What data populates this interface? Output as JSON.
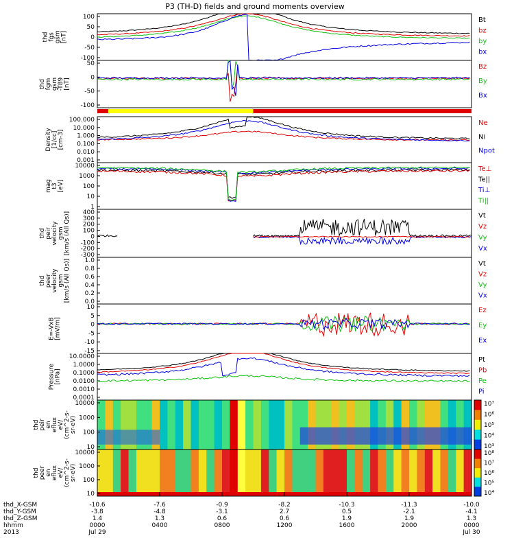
{
  "title": "P3 (TH-D) fields and ground moments overview",
  "colors": {
    "black": "#000000",
    "red": "#e00000",
    "green": "#10c010",
    "blue": "#0000e0",
    "yellow": "#ffff00"
  },
  "chart_data": {
    "type": "line",
    "x_axis": {
      "range_hours": [
        0,
        24
      ],
      "hhmm": [
        "0000",
        "0400",
        "0800",
        "1200",
        "1600",
        "2000",
        "0000"
      ],
      "date_labels": {
        "year": "2013",
        "start": "Jul 29",
        "end": "Jul 30"
      },
      "rows": [
        {
          "label": "thd_X-GSM",
          "values": [
            "-10.6",
            "-7.6",
            "-0.9",
            "-8.2",
            "-10.3",
            "-11.3",
            "-10.0"
          ]
        },
        {
          "label": "thd_Y-GSM",
          "values": [
            "-3.8",
            "-4.8",
            "-3.1",
            "2.7",
            "0.5",
            "-2.1",
            "-4.1"
          ]
        },
        {
          "label": "thd_Z-GSM",
          "values": [
            "1.4",
            "1.3",
            "0.6",
            "0.6",
            "1.9",
            "1.9",
            "1.3"
          ]
        },
        {
          "label": "hhmm",
          "values": [
            "0000",
            "0400",
            "0800",
            "1200",
            "1600",
            "2000",
            "0000"
          ]
        }
      ]
    },
    "panels": [
      {
        "id": "fgs",
        "ylabel": [
          "thd",
          "fgs",
          "gsm",
          "[nT]"
        ],
        "yticks": [
          "100",
          "50",
          "0",
          "-50",
          "-100"
        ],
        "legend": [
          {
            "name": "Bt",
            "color": "#000000"
          },
          {
            "name": "bz",
            "color": "#e00000"
          },
          {
            "name": "by",
            "color": "#10c010"
          },
          {
            "name": "bx",
            "color": "#0000e0"
          }
        ]
      },
      {
        "id": "fgm",
        "ylabel": [
          "thd",
          "fgm",
          "gsm",
          "-T89",
          "[nT]"
        ],
        "yticks": [
          "50",
          "0",
          "-50",
          "-100"
        ],
        "legend": [
          {
            "name": "Bz",
            "color": "#e00000"
          },
          {
            "name": "By",
            "color": "#10c010"
          },
          {
            "name": "Bx",
            "color": "#0000e0"
          }
        ]
      },
      {
        "id": "density",
        "ylabel": [
          "Density",
          "[1/cc]",
          "[cm-3]"
        ],
        "yticks": [
          "100.000",
          "10.000",
          "1.000",
          "0.100",
          "0.010",
          "0.001"
        ],
        "legend": [
          {
            "name": "Ne",
            "color": "#e00000"
          },
          {
            "name": "Ni",
            "color": "#000000"
          },
          {
            "name": "Npot",
            "color": "#0000e0"
          }
        ]
      },
      {
        "id": "temp",
        "ylabel": [
          "mag",
          "t3",
          "[eV]"
        ],
        "yticks": [
          "10000",
          "1000",
          "100",
          "10",
          "1"
        ],
        "legend": [
          {
            "name": "Te⊥",
            "color": "#e00000"
          },
          {
            "name": "Te||",
            "color": "#000000"
          },
          {
            "name": "Ti⊥",
            "color": "#0000e0"
          },
          {
            "name": "Ti||",
            "color": "#10c010"
          }
        ]
      },
      {
        "id": "peir_vel",
        "ylabel": [
          "thd",
          "peir",
          "velocity",
          "gsm",
          "[km/s (All Qs)]"
        ],
        "yticks": [
          "400",
          "300",
          "200",
          "100",
          "0",
          "-100",
          "-200",
          "-300"
        ],
        "legend": [
          {
            "name": "Vt",
            "color": "#000000"
          },
          {
            "name": "Vz",
            "color": "#e00000"
          },
          {
            "name": "Vy",
            "color": "#10c010"
          },
          {
            "name": "Vx",
            "color": "#0000e0"
          }
        ]
      },
      {
        "id": "peer_vel",
        "ylabel": [
          "thd",
          "peer",
          "velocity",
          "gsm",
          "[km/s (All Qs)]"
        ],
        "yticks": [
          "1.0",
          "0.8",
          "0.6",
          "0.4",
          "0.2",
          "0.0"
        ],
        "legend": [
          {
            "name": "Vt",
            "color": "#000000"
          },
          {
            "name": "Vz",
            "color": "#e00000"
          },
          {
            "name": "Vy",
            "color": "#10c010"
          },
          {
            "name": "Vx",
            "color": "#0000e0"
          }
        ]
      },
      {
        "id": "efield",
        "ylabel": [
          "E=-VxB",
          "[mV/m]"
        ],
        "yticks": [
          "10",
          "5",
          "0",
          "-5",
          "-10",
          "-15"
        ],
        "legend": [
          {
            "name": "Ez",
            "color": "#e00000"
          },
          {
            "name": "Ey",
            "color": "#10c010"
          },
          {
            "name": "Ex",
            "color": "#0000e0"
          }
        ]
      },
      {
        "id": "pressure",
        "ylabel": [
          "Pressure",
          "[nPa]"
        ],
        "yticks": [
          "10.0000",
          "1.0000",
          "0.1000",
          "0.0100",
          "0.0010",
          "0.0001"
        ],
        "legend": [
          {
            "name": "Pt",
            "color": "#000000"
          },
          {
            "name": "Pb",
            "color": "#e00000"
          },
          {
            "name": "Pe",
            "color": "#10c010"
          },
          {
            "name": "Pi",
            "color": "#0000e0"
          }
        ]
      },
      {
        "id": "peir_spec",
        "ylabel": [
          "thd",
          "peir",
          "en",
          "eflux",
          "eV/",
          "(cm^2-s-",
          "sr-eV)"
        ],
        "yticks": [
          "10000",
          "1000",
          "100",
          "10"
        ],
        "colorbar": [
          "10⁷",
          "10⁶",
          "10⁵",
          "10⁴",
          "10³"
        ]
      },
      {
        "id": "peer_spec",
        "ylabel": [
          "thd",
          "peer",
          "en",
          "eflux",
          "eV/",
          "(cm^2-s-",
          "sr-eV)"
        ],
        "yticks": [
          "10000",
          "1000",
          "100",
          "10"
        ],
        "colorbar": [
          "10⁸",
          "10⁷",
          "10⁶",
          "10⁵",
          "10⁴"
        ]
      }
    ]
  }
}
